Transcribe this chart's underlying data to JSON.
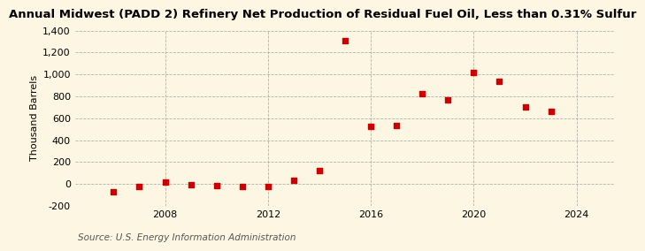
{
  "title": "Annual Midwest (PADD 2) Refinery Net Production of Residual Fuel Oil, Less than 0.31% Sulfur",
  "ylabel": "Thousand Barrels",
  "source": "Source: U.S. Energy Information Administration",
  "years": [
    2006,
    2007,
    2008,
    2009,
    2010,
    2011,
    2012,
    2013,
    2014,
    2015,
    2016,
    2017,
    2018,
    2019,
    2020,
    2021,
    2022,
    2023
  ],
  "values": [
    -75,
    -20,
    20,
    -10,
    -15,
    -25,
    -25,
    35,
    120,
    1310,
    525,
    535,
    825,
    765,
    1020,
    935,
    700,
    660
  ],
  "marker_color": "#cc0000",
  "background_color": "#fdf6e3",
  "grid_color": "#aaaaaa",
  "ylim": [
    -200,
    1400
  ],
  "yticks": [
    -200,
    0,
    200,
    400,
    600,
    800,
    1000,
    1200,
    1400
  ],
  "xtick_positions": [
    2008,
    2012,
    2016,
    2020,
    2024
  ],
  "xlim": [
    2004.5,
    2025.5
  ],
  "title_fontsize": 9.5,
  "ylabel_fontsize": 8,
  "source_fontsize": 7.5,
  "tick_labelsize": 8
}
